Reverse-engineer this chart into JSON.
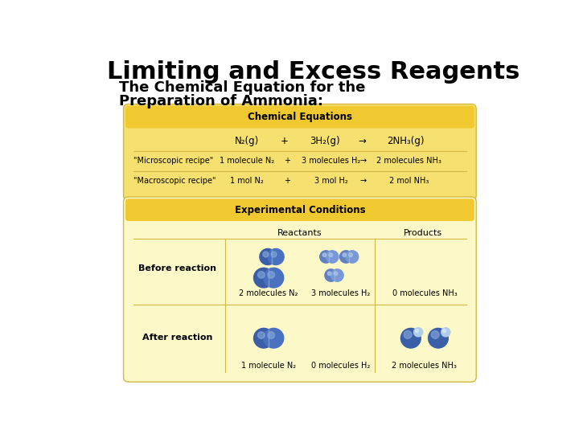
{
  "title": "Limiting and Excess Reagents",
  "subtitle_line1": "The Chemical Equation for the",
  "subtitle_line2": "Preparation of Ammonia:",
  "bg_color": "#ffffff",
  "table1_header": "Chemical Equations",
  "table1_bg": "#f5e070",
  "table1_header_bg": "#f0c830",
  "table2_header": "Experimental Conditions",
  "table2_bg": "#fdf8c8",
  "table2_header_bg": "#f0c830",
  "col_reactants": "Reactants",
  "col_products": "Products",
  "row_before": "Before reaction",
  "row_after": "After reaction",
  "before_n2": "2 molecules N₂",
  "before_h2": "3 molecules H₂",
  "before_nh3": "0 molecules NH₃",
  "after_n2": "1 molecule N₂",
  "after_h2": "0 molecules H₂",
  "after_nh3": "2 molecules NH₃",
  "divider_color": "#d4b840"
}
